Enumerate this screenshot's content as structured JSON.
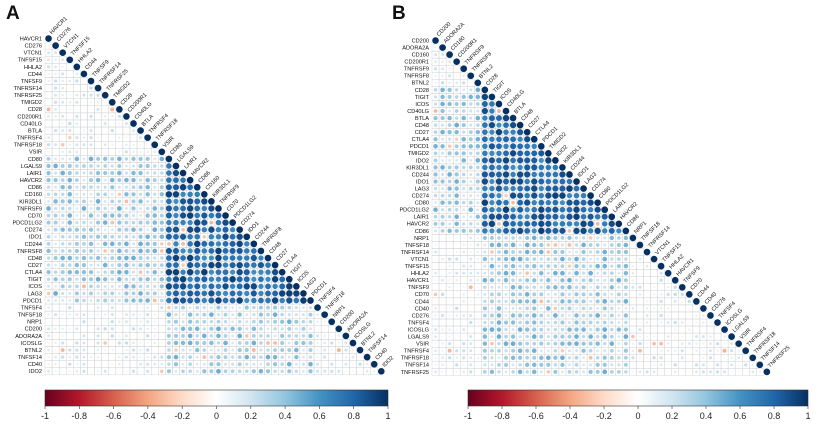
{
  "colors": {
    "negative": "#67001f",
    "mid_negative": "#f4a582",
    "zero": "#ffffff",
    "mid_positive": "#92c5de",
    "positive": "#053061",
    "grid": "#d0d0d0"
  },
  "chart_data": [
    {
      "type": "heatmap",
      "panel": "A",
      "title": "A",
      "shape": "lower-triangle correlation matrix (circle size and colour = Pearson correlation)",
      "labels": [
        "HAVCR1",
        "CD276",
        "VTCN1",
        "TNFSF15",
        "HHLA2",
        "CD44",
        "TNFSF9",
        "TNFRSF14",
        "TNFRSF25",
        "TMIGD2",
        "CD28",
        "CD200R1",
        "CD40LG",
        "BTLA",
        "TNFRSF4",
        "TNFRSF18",
        "VSIR",
        "CD80",
        "LGALS9",
        "LAIR1",
        "HAVCR2",
        "CD86",
        "CD160",
        "KIR3DL1",
        "TNFRSF9",
        "CD70",
        "PDCD1LG2",
        "CD274",
        "IDO1",
        "CD244",
        "TNFRSF8",
        "CD48",
        "CD27",
        "CTLA4",
        "TIGIT",
        "ICOS",
        "LAG3",
        "PDCD1",
        "TNFSF4",
        "TNFSF18",
        "NRP1",
        "CD200",
        "ADORA2A",
        "ICOSLG",
        "BTNL2",
        "TNFSF14",
        "CD40",
        "IDO2"
      ],
      "diagonal_labels": [
        "HAVCR1",
        "CD276",
        "VTCN1",
        "TNFSF15",
        "HHLA2",
        "CD44",
        "TNFSF9",
        "TNFRSF14",
        "TNFRSF25",
        "TMIGD2",
        "CD28",
        "CD200R1",
        "CD40LG",
        "BTLA",
        "TNFRSF4",
        "TNFRSF18",
        "VSIR",
        "CD80",
        "LGALS9",
        "LAIR1",
        "HAVCR2",
        "CD86",
        "CD160",
        "KIR3DL1",
        "TNFRSF9",
        "CD70",
        "PDCD1LG2",
        "CD274",
        "IDO1",
        "CD244",
        "TNFRSF8",
        "CD48",
        "CD27",
        "CTLA4",
        "TIGIT",
        "ICOS",
        "LAG3",
        "PDCD1",
        "TNFSF4",
        "TNFSF18",
        "NRP1",
        "CD200",
        "ADORA2A",
        "ICOSLG",
        "BTNL2",
        "TNFSF14",
        "CD40",
        "IDO2"
      ],
      "strong_cluster": [
        "CD80",
        "LGALS9",
        "LAIR1",
        "HAVCR2",
        "CD86",
        "CD160",
        "KIR3DL1",
        "TNFRSF9",
        "CD70",
        "PDCD1LG2",
        "CD274",
        "IDO1",
        "CD244",
        "TNFRSF8",
        "CD48",
        "CD27",
        "CTLA4",
        "TIGIT",
        "ICOS",
        "LAG3",
        "PDCD1"
      ],
      "values_note": "correlations estimated from circle colour/size; diagonal = 1",
      "colorbar": {
        "vmin": -1,
        "vmax": 1,
        "ticks": [
          "-1",
          "-0.8",
          "-0.6",
          "-0.4",
          "-0.2",
          "0",
          "0.2",
          "0.4",
          "0.6",
          "0.8",
          "1"
        ]
      }
    },
    {
      "type": "heatmap",
      "panel": "B",
      "title": "B",
      "shape": "lower-triangle correlation matrix (circle size and colour = Pearson correlation)",
      "labels": [
        "CD200",
        "ADORA2A",
        "CD160",
        "CD200R1",
        "TNFRSF9",
        "TNFRSF8",
        "BTNL2",
        "CD28",
        "TIGIT",
        "ICOS",
        "CD40LG",
        "BTLA",
        "CD48",
        "CD27",
        "CTLA4",
        "PDCD1",
        "TMIGD2",
        "IDO2",
        "KIR3DL1",
        "CD244",
        "IDO1",
        "LAG3",
        "CD274",
        "CD80",
        "PDCD1LG2",
        "LAIR1",
        "HAVCR2",
        "CD86",
        "NRP1",
        "TNFSF18",
        "TNFRSF14",
        "VTCN1",
        "TNFSF15",
        "HHLA2",
        "HAVCR1",
        "TNFSF9",
        "CD70",
        "CD44",
        "CD40",
        "CD276",
        "TNFSF4",
        "ICOSLG",
        "LGALS9",
        "VSIR",
        "TNFRSF4",
        "TNFRSF18",
        "TNFSF14",
        "TNFRSF25"
      ],
      "diagonal_labels": [
        "CD200",
        "ADORA2A",
        "CD160",
        "CD200R1",
        "TNFRSF9",
        "TNFRSF8",
        "BTNL2",
        "CD28",
        "TIGIT",
        "ICOS",
        "CD40LG",
        "BTLA",
        "CD48",
        "CD27",
        "CTLA4",
        "PDCD1",
        "TMIGD2",
        "IDO2",
        "KIR3DL1",
        "CD244",
        "IDO1",
        "LAG3",
        "CD274",
        "CD80",
        "PDCD1LG2",
        "LAIR1",
        "HAVCR2",
        "CD86",
        "NRP1",
        "TNFSF18",
        "TNFRSF14",
        "VTCN1",
        "TNFSF15",
        "HHLA2",
        "HAVCR1",
        "TNFSF9",
        "CD70",
        "CD44",
        "CD40",
        "CD276",
        "TNFSF4",
        "ICOSLG",
        "LGALS9",
        "VSIR",
        "TNFRSF4",
        "TNFRSF18",
        "TNFSF14",
        "TNFRSF25"
      ],
      "strong_cluster": [
        "CD28",
        "TIGIT",
        "ICOS",
        "CD40LG",
        "BTLA",
        "CD48",
        "CD27",
        "CTLA4",
        "PDCD1",
        "TMIGD2",
        "IDO2",
        "KIR3DL1",
        "CD244",
        "IDO1",
        "LAG3",
        "CD274",
        "CD80",
        "PDCD1LG2",
        "LAIR1",
        "HAVCR2",
        "CD86"
      ],
      "values_note": "correlations estimated from circle colour/size; diagonal = 1",
      "colorbar": {
        "vmin": -1,
        "vmax": 1,
        "ticks": [
          "-1",
          "-0.8",
          "-0.6",
          "-0.4",
          "-0.2",
          "0",
          "0.2",
          "0.4",
          "0.6",
          "0.8",
          "1"
        ]
      }
    }
  ]
}
